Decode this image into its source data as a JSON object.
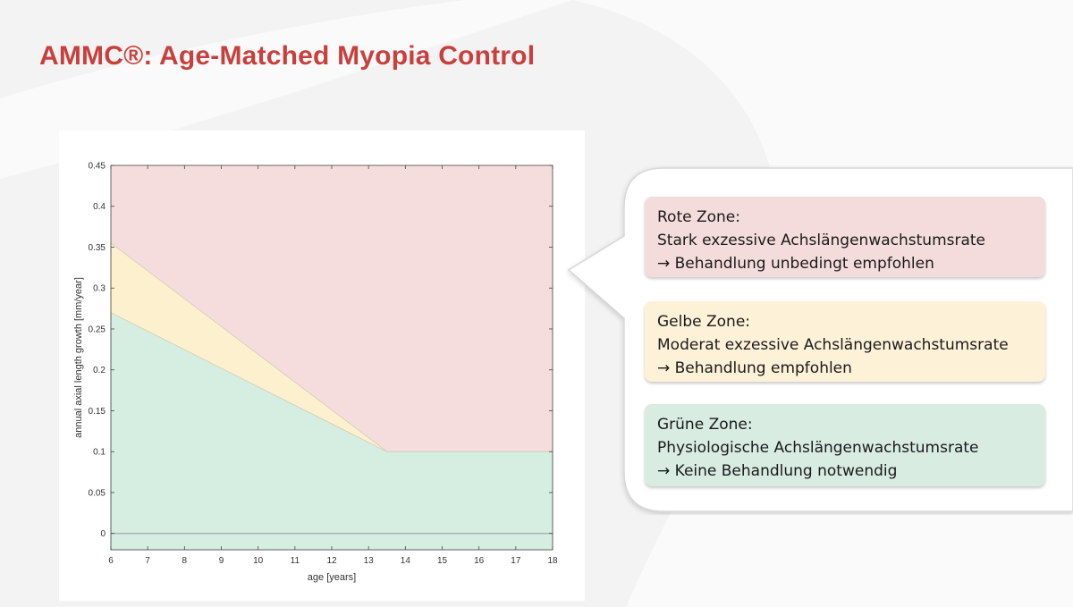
{
  "slide": {
    "title": "AMMC®: Age-Matched Myopia Control"
  },
  "colors": {
    "title": "#c8403e",
    "red_zone": "#f5dddd",
    "yellow_zone": "#fdf0cf",
    "green_zone": "#d6ede2"
  },
  "chart_data": {
    "type": "area",
    "title": "",
    "xlabel": "age [years]",
    "ylabel": "annual axial length growth [mm/year]",
    "xlim": [
      6,
      18
    ],
    "ylim": [
      -0.02,
      0.45
    ],
    "xticks": [
      6,
      7,
      8,
      9,
      10,
      11,
      12,
      13,
      14,
      15,
      16,
      17,
      18
    ],
    "yticks": [
      0,
      0.05,
      0.1,
      0.15,
      0.2,
      0.25,
      0.3,
      0.35,
      0.4,
      0.45
    ],
    "grid": false,
    "series": [
      {
        "name": "Grüne Zone",
        "boundary": "upper",
        "x": [
          6,
          13.5,
          18
        ],
        "y": [
          0.27,
          0.1,
          0.1
        ]
      },
      {
        "name": "Gelbe Zone",
        "boundary": "upper",
        "x": [
          6,
          13.5,
          18
        ],
        "y": [
          0.355,
          0.1,
          0.1
        ]
      },
      {
        "name": "Rote Zone",
        "boundary": "upper",
        "x": [
          6,
          18
        ],
        "y": [
          0.45,
          0.45
        ]
      }
    ]
  },
  "zones": [
    {
      "name": "Rote Zone:",
      "description": "Stark exzessive Achslängenwachstumsrate",
      "recommendation": "→ Behandlung unbedingt empfohlen"
    },
    {
      "name": "Gelbe Zone:",
      "description": "Moderat exzessive Achslängenwachstumsrate",
      "recommendation": "→ Behandlung empfohlen"
    },
    {
      "name": "Grüne Zone:",
      "description": "Physiologische Achslängenwachstumsrate",
      "recommendation": "→ Keine Behandlung notwendig"
    }
  ]
}
